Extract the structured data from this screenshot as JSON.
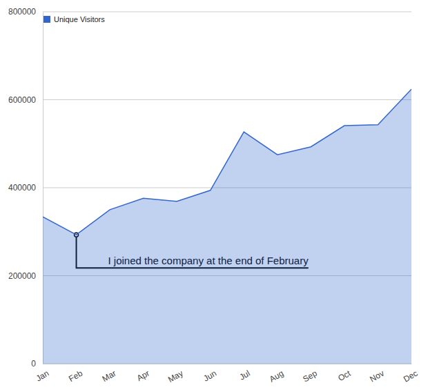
{
  "chart_data": {
    "type": "area",
    "categories": [
      "Jan",
      "Feb",
      "Mar",
      "Apr",
      "May",
      "Jun",
      "Jul",
      "Aug",
      "Sep",
      "Oct",
      "Nov",
      "Dec"
    ],
    "series": [
      {
        "name": "Unique Visitors",
        "color": "#3366cc",
        "values": [
          334000,
          293000,
          350000,
          376000,
          369000,
          394000,
          527000,
          475000,
          493000,
          541000,
          543000,
          624000
        ]
      }
    ],
    "ylim": [
      0,
      800000
    ],
    "yticks": [
      0,
      200000,
      400000,
      600000,
      800000
    ],
    "grid": true,
    "legend": "top-left",
    "annotations": [
      {
        "text": "I joined the company at the end of February",
        "category": "Feb"
      }
    ]
  }
}
